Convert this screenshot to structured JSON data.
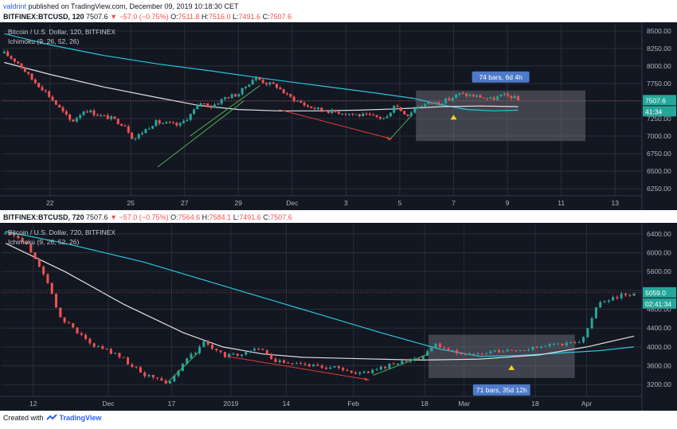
{
  "header": {
    "user": "valdrint",
    "published_text": "published on TradingView.com, December 09, 2019 10:18:30 CET"
  },
  "footer": {
    "created_with": "Created with",
    "brand": "TradingView"
  },
  "colors": {
    "bg": "#131722",
    "grid": "#2a2e39",
    "up": "#26a69a",
    "down": "#ef5350",
    "ma_white": "#e0e0e0",
    "ma_teal": "#26c6da",
    "green_line": "#4caf50",
    "red_line": "#e53935",
    "box": "#787b86",
    "badge": "#4e7ac7",
    "marker": "#f5d216"
  },
  "chart_data": [
    {
      "type": "candlestick",
      "symbol_line": {
        "symbol": "BITFINEX:BTCUSD, 120",
        "last": "7507.6",
        "change": "−57.0 (−0.75%)",
        "o_label": "O:",
        "o": "7511.8",
        "h_label": "H:",
        "h": "7516.0",
        "l_label": "L:",
        "l": "7491.6",
        "c_label": "C:",
        "c": "7507.6"
      },
      "title": "Bitcoin / U.S. Dollar, 120, BITFINEX",
      "indicator": "Ichimoku (9, 26, 52, 26)",
      "y_ticks": [
        "8500.00",
        "8250.00",
        "8000.00",
        "7750.00",
        "7500.00",
        "7250.00",
        "7000.00",
        "6750.00",
        "6500.00",
        "6250.00"
      ],
      "y_tick_values": [
        8500,
        8250,
        8000,
        7750,
        7500,
        7250,
        7000,
        6750,
        6500,
        6250
      ],
      "ylim": [
        6150,
        8600
      ],
      "x_ticks": [
        "22",
        "25",
        "27",
        "29",
        "Dec",
        "3",
        "5",
        "7",
        "9",
        "11",
        "13"
      ],
      "x_tick_days": [
        22,
        25,
        27,
        29,
        31,
        33,
        35,
        37,
        39,
        41,
        43
      ],
      "xlim": [
        20.2,
        44.0
      ],
      "price_label": "7507.6",
      "time_label": "41:34",
      "range_label": "74 bars, 6d 4h",
      "close_series": [
        [
          20.3,
          8180
        ],
        [
          20.8,
          8050
        ],
        [
          21.3,
          7820
        ],
        [
          21.8,
          7650
        ],
        [
          22.3,
          7420
        ],
        [
          22.8,
          7200
        ],
        [
          23.3,
          7380
        ],
        [
          23.8,
          7300
        ],
        [
          24.3,
          7250
        ],
        [
          24.8,
          7150
        ],
        [
          25.1,
          6950
        ],
        [
          25.4,
          7050
        ],
        [
          25.9,
          7200
        ],
        [
          26.3,
          7180
        ],
        [
          26.8,
          7150
        ],
        [
          27.2,
          7300
        ],
        [
          27.6,
          7480
        ],
        [
          28.0,
          7420
        ],
        [
          28.5,
          7550
        ],
        [
          29.0,
          7600
        ],
        [
          29.3,
          7720
        ],
        [
          29.6,
          7840
        ],
        [
          30.0,
          7760
        ],
        [
          30.4,
          7720
        ],
        [
          30.8,
          7580
        ],
        [
          31.2,
          7500
        ],
        [
          31.6,
          7420
        ],
        [
          32.0,
          7380
        ],
        [
          32.5,
          7350
        ],
        [
          33.0,
          7330
        ],
        [
          33.5,
          7300
        ],
        [
          34.0,
          7280
        ],
        [
          34.5,
          7250
        ],
        [
          34.8,
          7460
        ],
        [
          35.0,
          7380
        ],
        [
          35.3,
          7300
        ],
        [
          35.6,
          7420
        ],
        [
          36.0,
          7460
        ],
        [
          36.4,
          7480
        ],
        [
          36.8,
          7520
        ],
        [
          37.2,
          7600
        ],
        [
          37.6,
          7580
        ],
        [
          38.0,
          7560
        ],
        [
          38.4,
          7520
        ],
        [
          38.8,
          7580
        ],
        [
          39.2,
          7560
        ],
        [
          39.4,
          7507.6
        ]
      ],
      "ma_white": [
        [
          20.3,
          8050
        ],
        [
          22.0,
          7880
        ],
        [
          24.0,
          7700
        ],
        [
          26.0,
          7550
        ],
        [
          27.5,
          7440
        ],
        [
          29.0,
          7380
        ],
        [
          30.5,
          7360
        ],
        [
          32.0,
          7360
        ],
        [
          33.5,
          7370
        ],
        [
          35.0,
          7390
        ],
        [
          36.5,
          7420
        ],
        [
          38.0,
          7430
        ],
        [
          39.4,
          7420
        ]
      ],
      "ma_teal": [
        [
          20.3,
          8460
        ],
        [
          22.0,
          8300
        ],
        [
          24.0,
          8150
        ],
        [
          26.0,
          8030
        ],
        [
          28.0,
          7930
        ],
        [
          30.0,
          7820
        ],
        [
          32.0,
          7720
        ],
        [
          34.0,
          7620
        ],
        [
          35.5,
          7540
        ],
        [
          36.5,
          7450
        ],
        [
          37.5,
          7380
        ],
        [
          38.5,
          7360
        ],
        [
          39.4,
          7370
        ]
      ],
      "green_lines": [
        [
          [
            26.0,
            6560
          ],
          [
            29.2,
            7500
          ]
        ],
        [
          [
            27.2,
            7000
          ],
          [
            29.8,
            7720
          ]
        ],
        [
          [
            34.6,
            6940
          ],
          [
            35.4,
            7280
          ]
        ]
      ],
      "red_line": [
        [
          30.5,
          7380
        ],
        [
          34.7,
          6960
        ]
      ],
      "box": {
        "x0": 35.6,
        "x1": 41.9,
        "y0": 6930,
        "y1": 7650
      },
      "marker": [
        37.0,
        7270
      ]
    },
    {
      "type": "candlestick",
      "symbol_line": {
        "symbol": "BITFINEX:BTCUSD, 720",
        "last": "7507.6",
        "change": "−57.0 (−0.75%)",
        "o_label": "O:",
        "o": "7564.6",
        "h_label": "H:",
        "h": "7584.1",
        "l_label": "L:",
        "l": "7491.6",
        "c_label": "C:",
        "c": "7507.6"
      },
      "title": "Bitcoin / U.S. Dollar, 720, BITFINEX",
      "indicator": "Ichimoku (9, 26, 52, 26)",
      "y_ticks": [
        "6400.00",
        "6000.00",
        "5600.00",
        "5200.00",
        "4800.00",
        "4400.00",
        "4000.00",
        "3600.00",
        "3200.00"
      ],
      "y_tick_values": [
        6400,
        6000,
        5600,
        5200,
        4800,
        4400,
        4000,
        3600,
        3200
      ],
      "ylim": [
        2950,
        6600
      ],
      "x_ticks": [
        "12",
        "Dec",
        "17",
        "2019",
        "14",
        "Feb",
        "18",
        "Mar",
        "18",
        "Apr"
      ],
      "x_tick_days": [
        12,
        31,
        47,
        62,
        76,
        93,
        111,
        121,
        139,
        152
      ],
      "xlim": [
        4,
        166
      ],
      "price_label": "5059.0",
      "time_label": "02:41:34",
      "range_label": "71 bars, 35d 12h",
      "close_series": [
        [
          5,
          6400
        ],
        [
          8,
          6350
        ],
        [
          10,
          6200
        ],
        [
          13,
          5800
        ],
        [
          16,
          5300
        ],
        [
          19,
          4600
        ],
        [
          22,
          4400
        ],
        [
          25,
          4200
        ],
        [
          28,
          4000
        ],
        [
          31,
          3900
        ],
        [
          34,
          3800
        ],
        [
          37,
          3600
        ],
        [
          40,
          3400
        ],
        [
          43,
          3350
        ],
        [
          45,
          3250
        ],
        [
          47,
          3300
        ],
        [
          49,
          3500
        ],
        [
          51,
          3800
        ],
        [
          53,
          3900
        ],
        [
          55,
          4100
        ],
        [
          58,
          3900
        ],
        [
          61,
          3800
        ],
        [
          64,
          3850
        ],
        [
          67,
          3900
        ],
        [
          70,
          3950
        ],
        [
          73,
          3700
        ],
        [
          76,
          3650
        ],
        [
          79,
          3620
        ],
        [
          82,
          3600
        ],
        [
          85,
          3580
        ],
        [
          88,
          3550
        ],
        [
          91,
          3480
        ],
        [
          94,
          3450
        ],
        [
          97,
          3440
        ],
        [
          100,
          3550
        ],
        [
          103,
          3650
        ],
        [
          106,
          3700
        ],
        [
          109,
          3750
        ],
        [
          112,
          3900
        ],
        [
          114,
          4050
        ],
        [
          116,
          3950
        ],
        [
          119,
          3900
        ],
        [
          122,
          3880
        ],
        [
          125,
          3850
        ],
        [
          128,
          3900
        ],
        [
          131,
          3920
        ],
        [
          134,
          3950
        ],
        [
          137,
          3980
        ],
        [
          140,
          4000
        ],
        [
          143,
          4050
        ],
        [
          146,
          4050
        ],
        [
          149,
          4100
        ],
        [
          151,
          4150
        ],
        [
          153,
          4600
        ],
        [
          155,
          4900
        ],
        [
          158,
          5000
        ],
        [
          161,
          5100
        ],
        [
          164,
          5150
        ]
      ],
      "ma_white": [
        [
          5,
          6200
        ],
        [
          20,
          5600
        ],
        [
          35,
          4900
        ],
        [
          50,
          4300
        ],
        [
          60,
          4000
        ],
        [
          70,
          3850
        ],
        [
          80,
          3780
        ],
        [
          95,
          3750
        ],
        [
          110,
          3720
        ],
        [
          125,
          3740
        ],
        [
          140,
          3830
        ],
        [
          152,
          4000
        ],
        [
          164,
          4230
        ]
      ],
      "ma_teal": [
        [
          5,
          6450
        ],
        [
          20,
          6200
        ],
        [
          40,
          5800
        ],
        [
          60,
          5300
        ],
        [
          80,
          4800
        ],
        [
          100,
          4300
        ],
        [
          115,
          3950
        ],
        [
          125,
          3800
        ],
        [
          135,
          3820
        ],
        [
          145,
          3870
        ],
        [
          155,
          3920
        ],
        [
          164,
          4000
        ]
      ],
      "green_lines": [
        [
          [
            46,
            3250
          ],
          [
            54,
            3900
          ]
        ],
        [
          [
            98,
            3400
          ],
          [
            112,
            3850
          ]
        ]
      ],
      "red_line": [
        [
          61,
          3800
        ],
        [
          97,
          3300
        ]
      ],
      "box": {
        "x0": 112,
        "x1": 149,
        "y0": 3340,
        "y1": 4260
      },
      "marker": [
        133,
        3560
      ]
    }
  ]
}
